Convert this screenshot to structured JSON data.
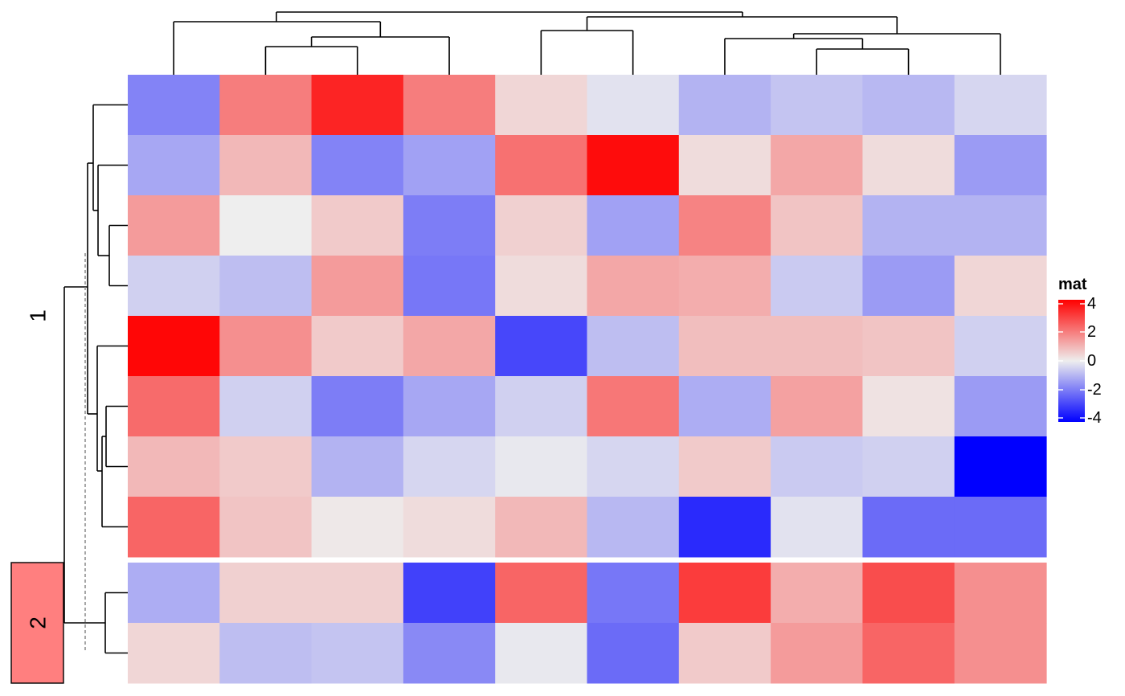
{
  "chart_data": {
    "type": "heatmap",
    "title": "",
    "legend": {
      "title": "mat",
      "ticks": [
        "4",
        "2",
        "0",
        "-2",
        "-4"
      ],
      "tick_values": [
        4,
        2,
        0,
        -2,
        -4
      ],
      "range": [
        -4,
        4
      ],
      "colors": {
        "low": "#0000FF",
        "mid": "#EEEEEE",
        "high": "#FF0000"
      },
      "placement": "right"
    },
    "row_slices": [
      {
        "label": "1",
        "row_count": 8,
        "color": ""
      },
      {
        "label": "2",
        "row_count": 2,
        "color": "#FF7F7F"
      }
    ],
    "n_cols": 10,
    "values": [
      [
        -1.8,
        1.9,
        3.4,
        1.9,
        0.4,
        -0.2,
        -1.0,
        -0.7,
        -0.9,
        -0.4
      ],
      [
        -1.2,
        0.9,
        -1.8,
        -1.3,
        2.1,
        3.8,
        0.3,
        1.2,
        0.3,
        -1.4
      ],
      [
        1.4,
        0.0,
        0.6,
        -1.9,
        0.5,
        -1.3,
        1.8,
        0.7,
        -1.0,
        -1.0
      ],
      [
        -0.5,
        -0.8,
        1.4,
        -2.0,
        0.3,
        1.2,
        1.1,
        -0.6,
        -1.4,
        0.4
      ],
      [
        3.9,
        1.6,
        0.6,
        1.2,
        -2.8,
        -0.8,
        0.8,
        0.8,
        0.7,
        -0.5
      ],
      [
        2.2,
        -0.5,
        -1.9,
        -1.2,
        -0.5,
        2.0,
        -1.1,
        1.3,
        0.2,
        -1.4
      ],
      [
        0.9,
        0.6,
        -1.0,
        -0.4,
        -0.1,
        -0.4,
        0.6,
        -0.6,
        -0.5,
        -4.0
      ],
      [
        2.3,
        0.7,
        0.1,
        0.3,
        0.9,
        -0.9,
        -3.3,
        -0.2,
        -2.2,
        -2.2
      ],
      [
        -1.1,
        0.5,
        0.5,
        -2.9,
        2.3,
        -2.0,
        3.0,
        1.1,
        2.7,
        1.6
      ],
      [
        0.4,
        -0.8,
        -0.7,
        -1.7,
        -0.1,
        -2.2,
        0.6,
        1.4,
        2.3,
        1.6
      ]
    ]
  }
}
